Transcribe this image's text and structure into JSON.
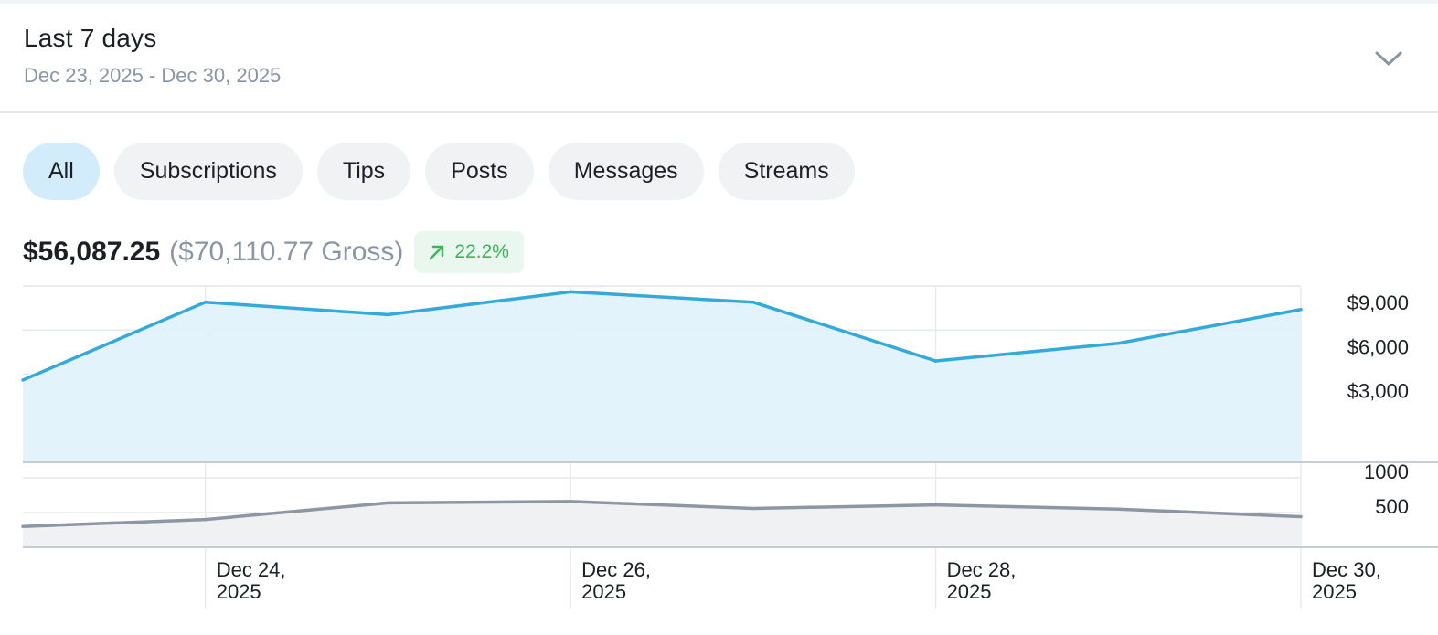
{
  "header": {
    "title": "Last 7 days",
    "date_range": "Dec 23, 2025 - Dec 30, 2025",
    "dropdown_icon": "chevron-down-icon"
  },
  "filters": {
    "active": "All",
    "items": [
      "All",
      "Subscriptions",
      "Tips",
      "Posts",
      "Messages",
      "Streams"
    ]
  },
  "summary": {
    "net": "$56,087.25",
    "gross": "($70,110.77 Gross)",
    "change": "22.2%",
    "change_icon": "arrow-up-right-icon"
  },
  "colors": {
    "accent": "#33aadb",
    "accent_fill": "#e1f2fb",
    "secondary": "#8c97a3",
    "secondary_fill": "#f0f1f3",
    "positive": "#3cb55c",
    "positive_bg": "#eaf7ee",
    "active_pill": "#d2ecfb"
  },
  "chart_data": [
    {
      "type": "area",
      "name": "earnings",
      "x": [
        "Dec 23, 2025",
        "Dec 24, 2025",
        "Dec 25, 2025",
        "Dec 26, 2025",
        "Dec 27, 2025",
        "Dec 28, 2025",
        "Dec 29, 2025",
        "Dec 30, 2025"
      ],
      "values": [
        2600,
        7900,
        7050,
        8600,
        7900,
        3900,
        5100,
        7400
      ],
      "ylim": [
        -3000,
        9000
      ],
      "yticks": [
        9000,
        6000,
        3000
      ],
      "ytick_labels": [
        "$9,000",
        "$6,000",
        "$3,000"
      ],
      "grid": true
    },
    {
      "type": "area",
      "name": "count",
      "x": [
        "Dec 23, 2025",
        "Dec 24, 2025",
        "Dec 25, 2025",
        "Dec 26, 2025",
        "Dec 27, 2025",
        "Dec 28, 2025",
        "Dec 29, 2025",
        "Dec 30, 2025"
      ],
      "values": [
        300,
        400,
        640,
        660,
        560,
        610,
        550,
        440
      ],
      "ylim": [
        0,
        1000
      ],
      "yticks": [
        1000,
        500
      ],
      "ytick_labels": [
        "1000",
        "500"
      ],
      "xtick_labels": [
        {
          "index": 1,
          "line1": "Dec 24,",
          "line2": "2025"
        },
        {
          "index": 3,
          "line1": "Dec 26,",
          "line2": "2025"
        },
        {
          "index": 5,
          "line1": "Dec 28,",
          "line2": "2025"
        },
        {
          "index": 7,
          "line1": "Dec 30,",
          "line2": "2025"
        }
      ],
      "grid": true
    }
  ]
}
